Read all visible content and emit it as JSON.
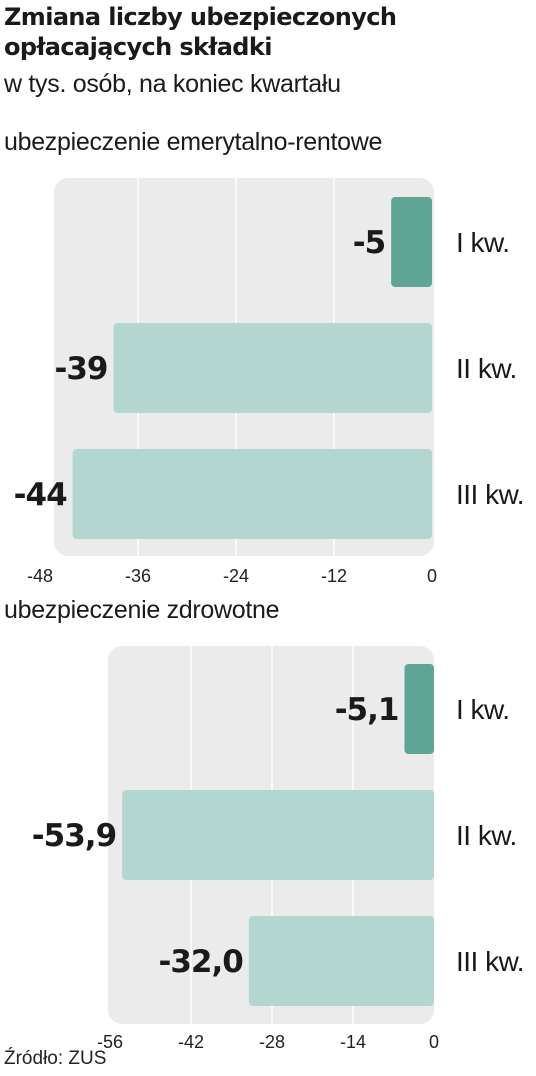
{
  "title": "Zmiana liczby ubezpieczonych opłacających składki",
  "subtitle": "w tys. osób, na koniec kwartału",
  "source": "Źródło: ZUS",
  "colors": {
    "highlight": "#5fa596",
    "bar": "#b3d7d0",
    "panel": "#ebebeb",
    "grid": "#ffffff"
  },
  "chart_data": [
    {
      "type": "bar",
      "orientation": "horizontal",
      "title": "ubezpieczenie emerytalno-rentowe",
      "categories": [
        "I kw.",
        "II kw.",
        "III kw."
      ],
      "values": [
        -5,
        -39,
        -44
      ],
      "value_labels": [
        "-5",
        "-39",
        "-44"
      ],
      "xlim": [
        -48,
        0
      ],
      "ticks": [
        -48,
        -36,
        -24,
        -12,
        0
      ],
      "tick_labels": [
        "-48",
        "-36",
        "-24",
        "-12",
        "0"
      ],
      "highlight_index": 0,
      "grid": true
    },
    {
      "type": "bar",
      "orientation": "horizontal",
      "title": "ubezpieczenie zdrowotne",
      "categories": [
        "I kw.",
        "II kw.",
        "III kw."
      ],
      "values": [
        -5.1,
        -53.9,
        -32.0
      ],
      "value_labels": [
        "-5,1",
        "-53,9",
        "-32,0"
      ],
      "xlim": [
        -56,
        0
      ],
      "ticks": [
        -56,
        -42,
        -28,
        -14,
        0
      ],
      "tick_labels": [
        "-56",
        "-42",
        "-28",
        "-14",
        "0"
      ],
      "highlight_index": 0,
      "grid": true
    }
  ]
}
